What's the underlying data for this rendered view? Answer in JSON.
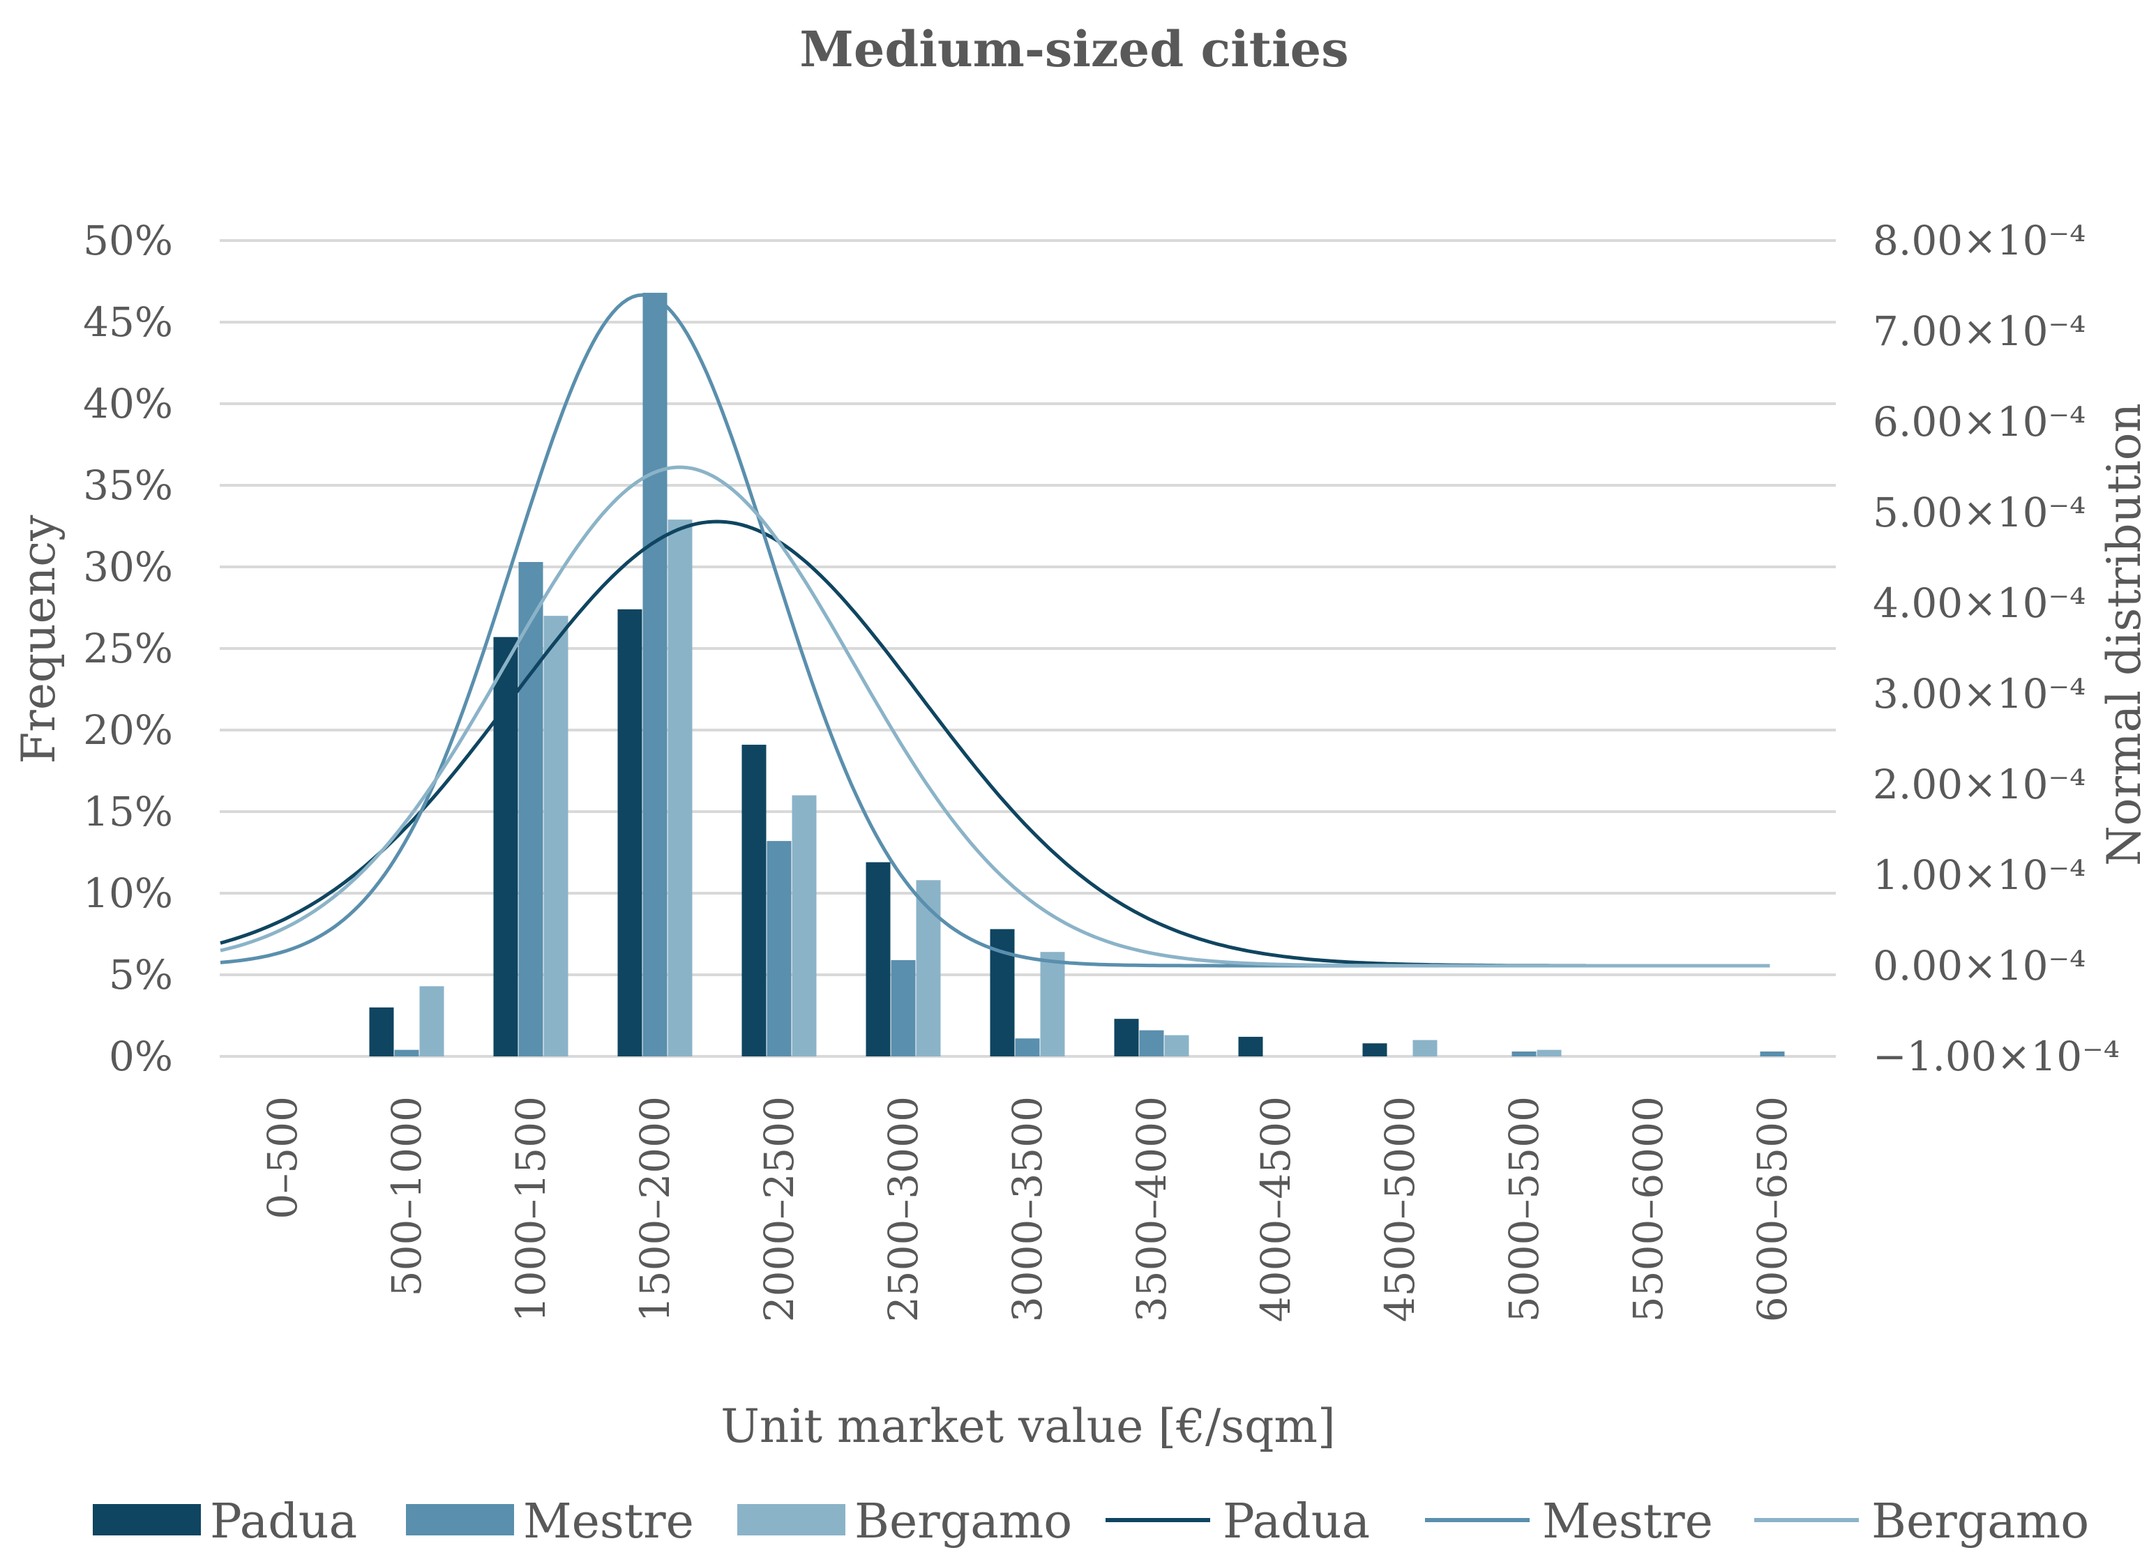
{
  "chart_data": {
    "type": "bar",
    "title": "Medium-sized cities",
    "xlabel": "Unit market value [€/sqm]",
    "ylabel": "Frequency",
    "y2label": "Normal distribution",
    "ylim": [
      0,
      50
    ],
    "y2lim": [
      -1.0,
      8.0
    ],
    "categories": [
      "0–500",
      "500–1000",
      "1000–1500",
      "1500–2000",
      "2000–2500",
      "2500–3000",
      "3000–3500",
      "3500–4000",
      "4000–4500",
      "4500–5000",
      "5000–5500",
      "5500–6000",
      "6000–6500"
    ],
    "y_ticks": [
      "0%",
      "5%",
      "10%",
      "15%",
      "20%",
      "25%",
      "30%",
      "35%",
      "40%",
      "45%",
      "50%"
    ],
    "y2_ticks": [
      "−1.00×10⁻⁴",
      "0.00×10⁻⁴",
      "1.00×10⁻⁴",
      "2.00×10⁻⁴",
      "3.00×10⁻⁴",
      "4.00×10⁻⁴",
      "5.00×10⁻⁴",
      "6.00×10⁻⁴",
      "7.00×10⁻⁴",
      "8.00×10⁻⁴"
    ],
    "series": [
      {
        "name": "Padua",
        "color": "#0f4560",
        "values": [
          0,
          3.0,
          25.7,
          27.4,
          19.1,
          11.9,
          7.8,
          2.3,
          1.2,
          0.8,
          0,
          0,
          0
        ]
      },
      {
        "name": "Mestre",
        "color": "#5a8fad",
        "values": [
          0,
          0.4,
          30.3,
          46.8,
          13.2,
          5.9,
          1.1,
          1.6,
          0,
          0,
          0.3,
          0,
          0.3
        ]
      },
      {
        "name": "Bergamo",
        "color": "#8bb3c8",
        "values": [
          0,
          4.3,
          27.0,
          32.9,
          16.0,
          10.8,
          6.4,
          1.3,
          0,
          1.0,
          0.4,
          0,
          0
        ]
      }
    ],
    "curves": [
      {
        "name": "Padua",
        "color": "#0f4560",
        "mean": 2000,
        "sd": 820,
        "peak": 4.9,
        "x_end": 5500
      },
      {
        "name": "Mestre",
        "color": "#5a8fad",
        "mean": 1700,
        "sd": 520,
        "peak": 7.4,
        "x_end": 5500
      },
      {
        "name": "Bergamo",
        "color": "#8bb3c8",
        "mean": 1850,
        "sd": 700,
        "peak": 5.5,
        "x_end": 6250
      }
    ],
    "legend": [
      {
        "label": "Padua",
        "kind": "bar",
        "color": "#0f4560"
      },
      {
        "label": "Mestre",
        "kind": "bar",
        "color": "#5a8fad"
      },
      {
        "label": "Bergamo",
        "kind": "bar",
        "color": "#8bb3c8"
      },
      {
        "label": "Padua",
        "kind": "line",
        "color": "#0f4560"
      },
      {
        "label": "Mestre",
        "kind": "line",
        "color": "#5a8fad"
      },
      {
        "label": "Bergamo",
        "kind": "line",
        "color": "#8bb3c8"
      }
    ],
    "legend_position": "bottom"
  }
}
